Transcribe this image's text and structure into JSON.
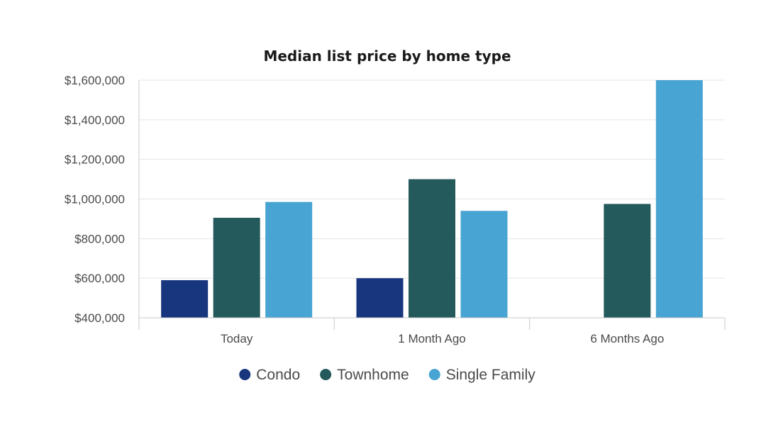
{
  "chart_data": {
    "type": "bar",
    "title": "Median list price by home type",
    "xlabel": "",
    "ylabel": "",
    "categories": [
      "Today",
      "1 Month Ago",
      "6 Months Ago"
    ],
    "series": [
      {
        "name": "Condo",
        "color": "#17367e",
        "values": [
          590000,
          600000,
          null
        ]
      },
      {
        "name": "Townhome",
        "color": "#245a5c",
        "values": [
          905000,
          1100000,
          975000
        ]
      },
      {
        "name": "Single Family",
        "color": "#48a4d2",
        "values": [
          985000,
          940000,
          1600000
        ]
      }
    ],
    "ylim": [
      400000,
      1600000
    ],
    "yticks": [
      400000,
      600000,
      800000,
      1000000,
      1200000,
      1400000,
      1600000
    ],
    "ytick_labels": [
      "$400,000",
      "$600,000",
      "$800,000",
      "$1,000,000",
      "$1,200,000",
      "$1,400,000",
      "$1,600,000"
    ],
    "grid": true,
    "legend_position": "bottom"
  }
}
